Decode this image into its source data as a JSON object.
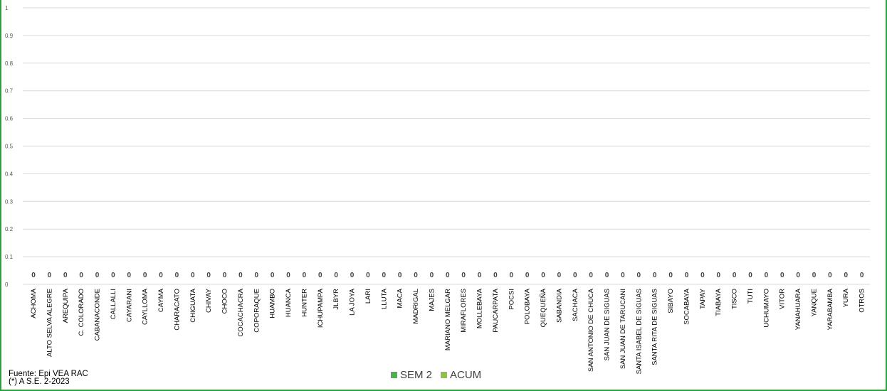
{
  "source": {
    "line1": "Fuente:  Epi VEA RAC",
    "line2": "(*) A S.E. 2-2023"
  },
  "legend": [
    {
      "name": "SEM 2",
      "color": "#4caf50"
    },
    {
      "name": "ACUM",
      "color": "#8bc34a"
    }
  ],
  "colors": {
    "frame": "#2e9e3e",
    "grid": "#d9d9d9"
  },
  "chart_data": {
    "type": "bar",
    "title": "",
    "xlabel": "",
    "ylabel": "",
    "ylim": [
      0,
      1
    ],
    "yticks": [
      "0",
      "0.1",
      "0.2",
      "0.3",
      "0.4",
      "0.5",
      "0.6",
      "0.7",
      "0.8",
      "0.9",
      "1"
    ],
    "grid": true,
    "legend_position": "bottom",
    "categories": [
      "ACHOMA",
      "ALTO SELVA ALEGRE",
      "AREQUIPA",
      "C. COLORADO",
      "CABANACONDE",
      "CALLALLI",
      "CAYARANI",
      "CAYLLOMA",
      "CAYMA",
      "CHARACATO",
      "CHIGUATA",
      "CHIVAY",
      "CHOCO",
      "COCACHACRA",
      "COPORAQUE",
      "HUAMBO",
      "HUANCA",
      "HUNTER",
      "ICHUPAMPA",
      "JLBYR",
      "LA JOYA",
      "LARI",
      "LLUTA",
      "MACA",
      "MADRIGAL",
      "MAJES",
      "MARIANO MELGAR",
      "MIRAFLORES",
      "MOLLEBAYA",
      "PAUCARPATA",
      "POCSI",
      "POLOBAYA",
      "QUEQUEÑA",
      "SABANDIA",
      "SACHACA",
      "SAN ANTONIO DE CHUCA",
      "SAN JUAN DE SIGUAS",
      "SAN JUAN DE TARUCANI",
      "SANTA ISABEL DE SIGUAS",
      "SANTA RITA DE SIGUAS",
      "SIBAYO",
      "SOCABAYA",
      "TAPAY",
      "TIABAYA",
      "TISCO",
      "TUTI",
      "UCHUMAYO",
      "VITOR",
      "YANAHUARA",
      "YANQUE",
      "YARABAMBA",
      "YURA",
      "OTROS"
    ],
    "series": [
      {
        "name": "SEM 2",
        "values": [
          0,
          0,
          0,
          0,
          0,
          0,
          0,
          0,
          0,
          0,
          0,
          0,
          0,
          0,
          0,
          0,
          0,
          0,
          0,
          0,
          0,
          0,
          0,
          0,
          0,
          0,
          0,
          0,
          0,
          0,
          0,
          0,
          0,
          0,
          0,
          0,
          0,
          0,
          0,
          0,
          0,
          0,
          0,
          0,
          0,
          0,
          0,
          0,
          0,
          0,
          0,
          0,
          0
        ]
      },
      {
        "name": "ACUM",
        "values": [
          0,
          0,
          0,
          0,
          0,
          0,
          0,
          0,
          0,
          0,
          0,
          0,
          0,
          0,
          0,
          0,
          0,
          0,
          0,
          0,
          0,
          0,
          0,
          0,
          0,
          0,
          0,
          0,
          0,
          0,
          0,
          0,
          0,
          0,
          0,
          0,
          0,
          0,
          0,
          0,
          0,
          0,
          0,
          0,
          0,
          0,
          0,
          0,
          0,
          0,
          0,
          0,
          0
        ]
      }
    ],
    "data_labels": true
  }
}
